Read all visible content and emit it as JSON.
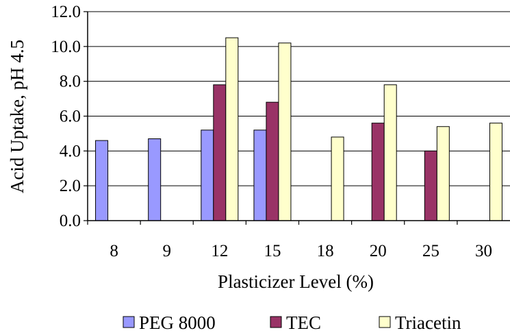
{
  "chart_data": {
    "type": "bar",
    "title": "",
    "xlabel": "Plasticizer Level (%)",
    "ylabel": "Acid Uptake, pH 4.5",
    "categories": [
      "8",
      "9",
      "12",
      "15",
      "18",
      "20",
      "25",
      "30"
    ],
    "yticks": [
      "0.0",
      "2.0",
      "4.0",
      "6.0",
      "8.0",
      "10.0",
      "12.0"
    ],
    "ylim": [
      0,
      12
    ],
    "grid": true,
    "legend_position": "bottom",
    "series": [
      {
        "name": "PEG 8000",
        "color": "#9999ff",
        "values": [
          4.6,
          4.7,
          5.2,
          5.2,
          null,
          null,
          null,
          null
        ]
      },
      {
        "name": "TEC",
        "color": "#993366",
        "values": [
          null,
          null,
          7.8,
          6.8,
          null,
          5.6,
          4.0,
          null
        ]
      },
      {
        "name": "Triacetin",
        "color": "#ffffcc",
        "values": [
          null,
          null,
          10.5,
          10.2,
          4.8,
          7.8,
          5.4,
          5.6
        ]
      }
    ]
  }
}
